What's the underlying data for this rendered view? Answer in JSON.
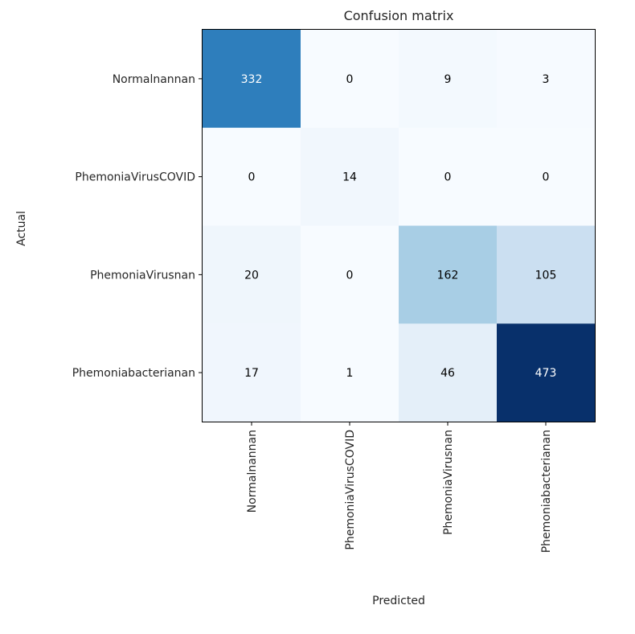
{
  "chart_data": {
    "type": "heatmap",
    "title": "Confusion matrix",
    "xlabel": "Predicted",
    "ylabel": "Actual",
    "x_categories": [
      "Normalnannan",
      "PhemoniaVirusCOVID",
      "PhemoniaVirusnan",
      "Phemoniabacterianan"
    ],
    "y_categories": [
      "Normalnannan",
      "PhemoniaVirusCOVID",
      "PhemoniaVirusnan",
      "Phemoniabacterianan"
    ],
    "matrix": [
      [
        332,
        0,
        9,
        3
      ],
      [
        0,
        14,
        0,
        0
      ],
      [
        20,
        0,
        162,
        105
      ],
      [
        17,
        1,
        46,
        473
      ]
    ],
    "colormap": "Blues",
    "colors": {
      "low": "#f7fbff",
      "high": "#08306b"
    },
    "grid": false
  }
}
